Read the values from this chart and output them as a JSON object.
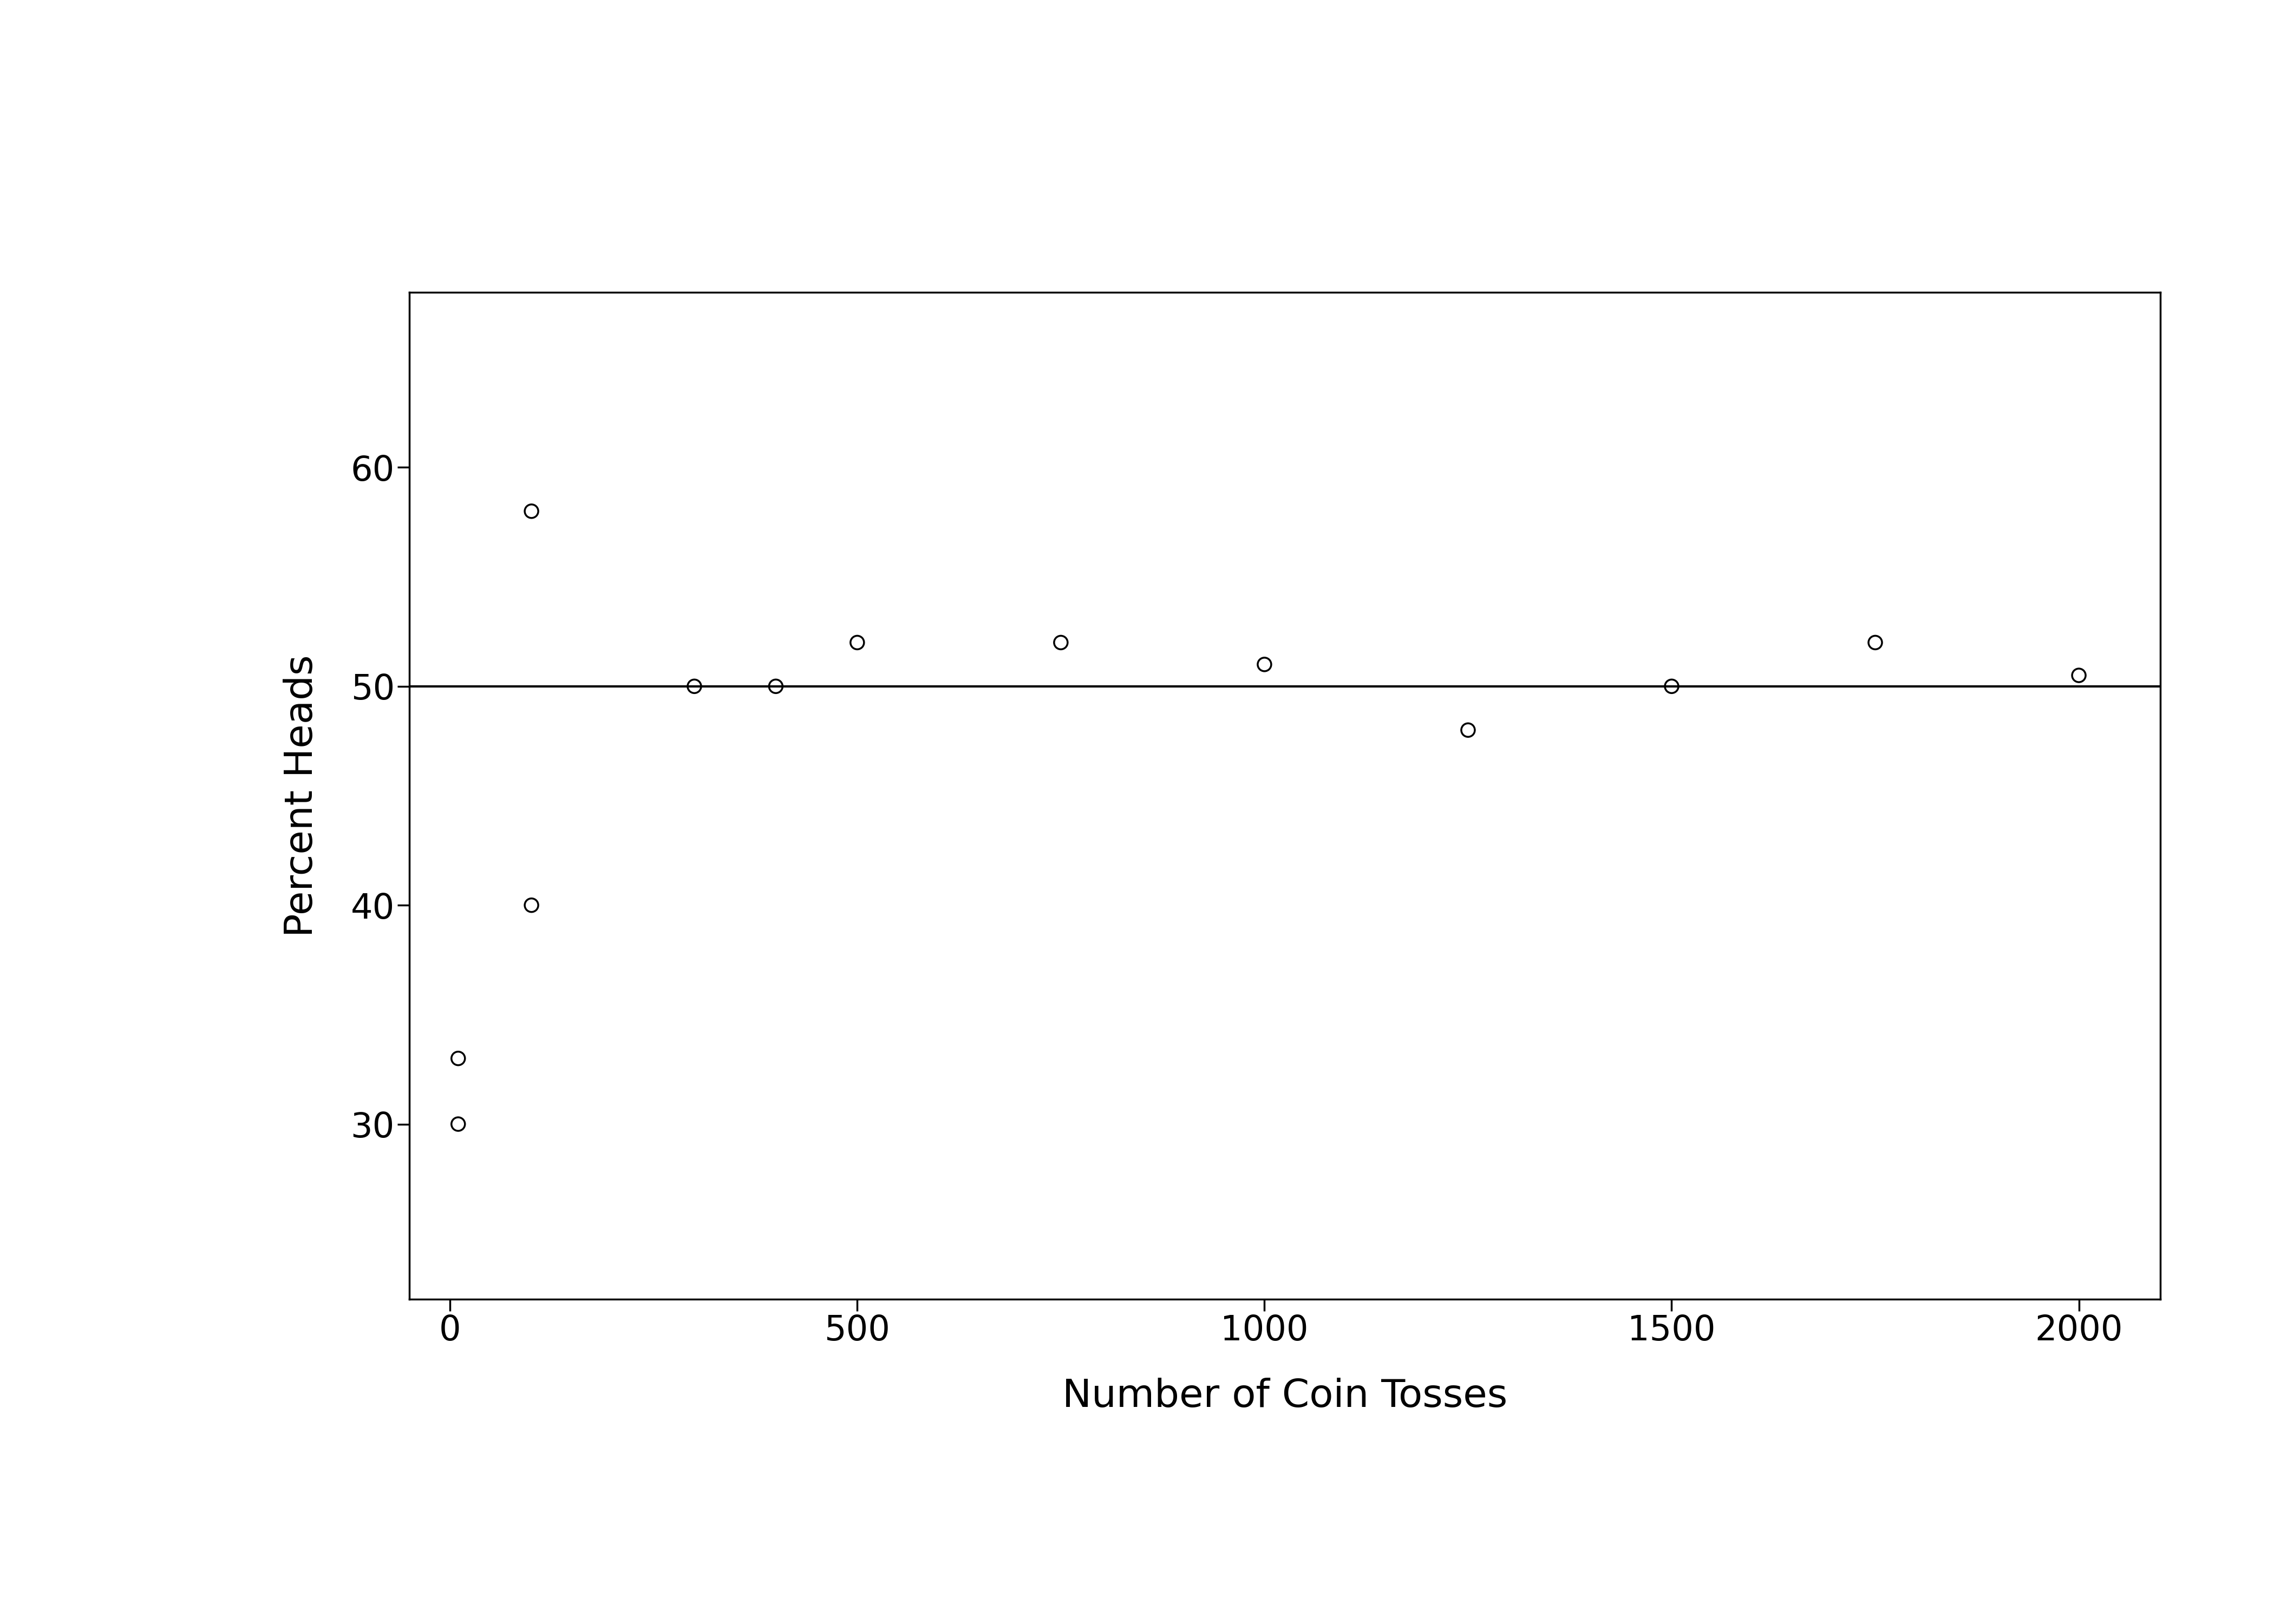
{
  "x": [
    10,
    10,
    100,
    100,
    300,
    400,
    500,
    750,
    1000,
    1250,
    1500,
    1750,
    2000
  ],
  "y": [
    30,
    33,
    58,
    40,
    50,
    50,
    52,
    52,
    51,
    48,
    50,
    52,
    50.5
  ],
  "hline_y": 50,
  "xlim": [
    -50,
    2100
  ],
  "ylim": [
    22,
    68
  ],
  "xticks": [
    0,
    500,
    1000,
    1500,
    2000
  ],
  "yticks": [
    30,
    40,
    50,
    60
  ],
  "xlabel": "Number of Coin Tosses",
  "ylabel": "Percent Heads",
  "xlabel_fontsize": 52,
  "ylabel_fontsize": 52,
  "tick_fontsize": 46,
  "marker_size": 18,
  "marker_linewidth": 2.5,
  "hline_linewidth": 3.0,
  "background_color": "#ffffff",
  "marker_color": "black",
  "hline_color": "black",
  "spine_linewidth": 2.5
}
